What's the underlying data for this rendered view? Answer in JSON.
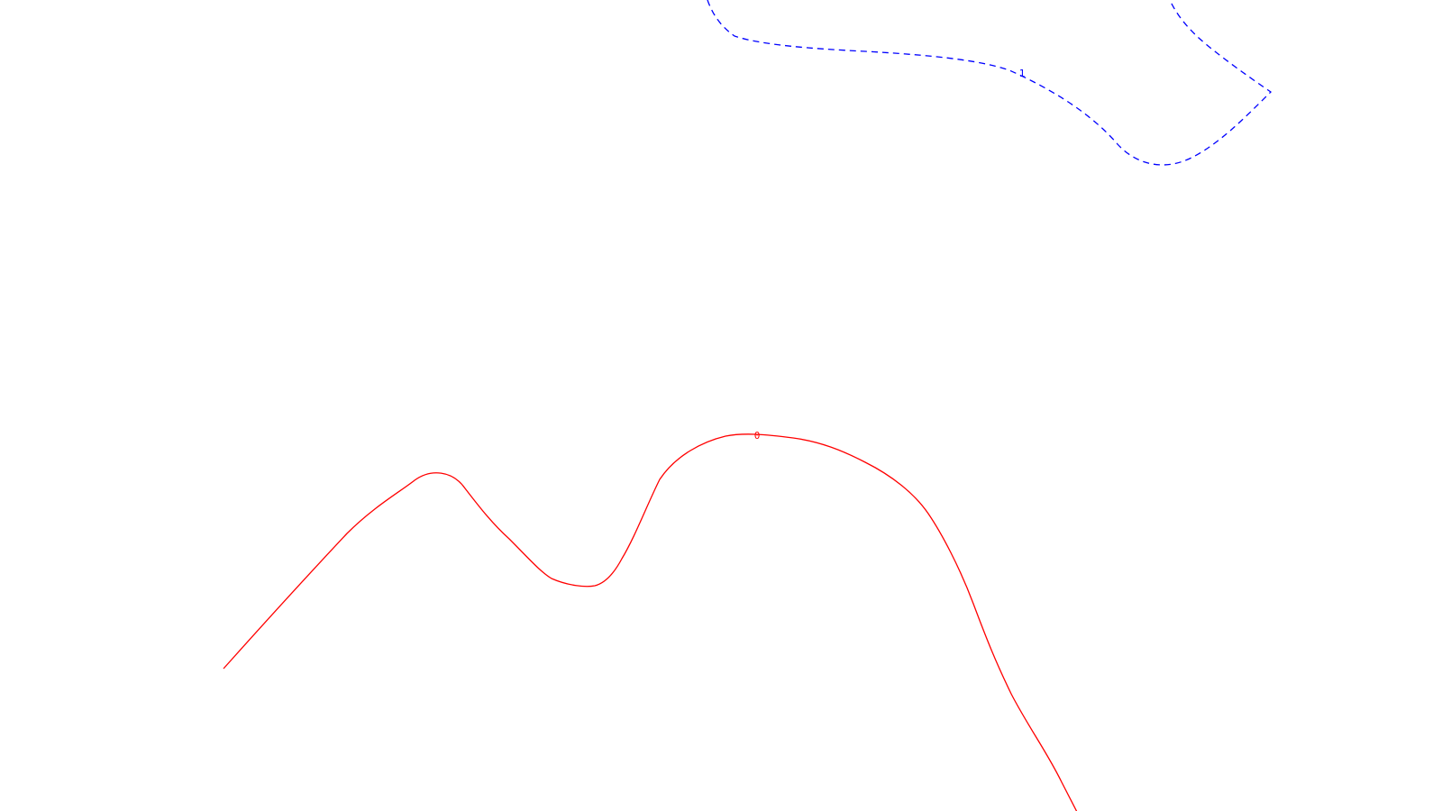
{
  "colors": {
    "background": "#ffffff"
  },
  "contours": [
    {
      "label": "1",
      "color": "#0000ff",
      "style": "dashed"
    },
    {
      "label": "0",
      "color": "#ff0000",
      "style": "solid"
    }
  ]
}
